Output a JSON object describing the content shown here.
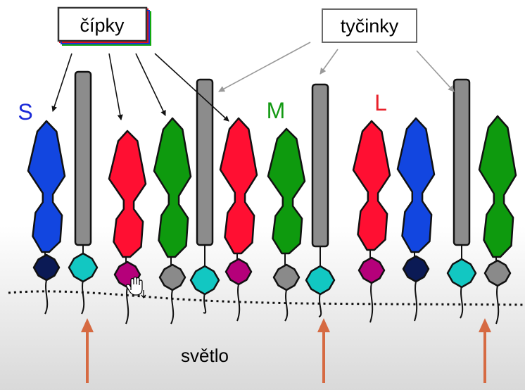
{
  "labels": {
    "cones": "čípky",
    "rods": "tyčinky",
    "s": "S",
    "m": "M",
    "l": "L",
    "light": "světlo"
  },
  "colors": {
    "s_cone": "#1246e0",
    "m_cone": "#0e9a0e",
    "l_cone": "#ff0f32",
    "rod": "#8c8c8c",
    "nucleus_cyan": "#12c7c2",
    "nucleus_navy": "#0b1a55",
    "nucleus_magenta": "#b5007a",
    "nucleus_gray": "#8a8a8a",
    "arrow": "#d66a42",
    "s_label": "#1a2ad8",
    "m_label": "#139a13",
    "l_label": "#e8202a"
  },
  "cells": [
    {
      "kind": "cone",
      "type": "S",
      "nucleus": "navy"
    },
    {
      "kind": "rod",
      "nucleus": "cyan"
    },
    {
      "kind": "cone",
      "type": "L",
      "nucleus": "magenta"
    },
    {
      "kind": "cone",
      "type": "M",
      "nucleus": "gray"
    },
    {
      "kind": "rod",
      "nucleus": "cyan"
    },
    {
      "kind": "cone",
      "type": "L",
      "nucleus": "magenta"
    },
    {
      "kind": "cone",
      "type": "M",
      "nucleus": "gray"
    },
    {
      "kind": "rod",
      "nucleus": "cyan"
    },
    {
      "kind": "cone",
      "type": "L",
      "nucleus": "magenta"
    },
    {
      "kind": "cone",
      "type": "S",
      "nucleus": "navy"
    },
    {
      "kind": "rod",
      "nucleus": "cyan"
    },
    {
      "kind": "cone",
      "type": "M",
      "nucleus": "gray"
    }
  ],
  "light_arrows": 3
}
